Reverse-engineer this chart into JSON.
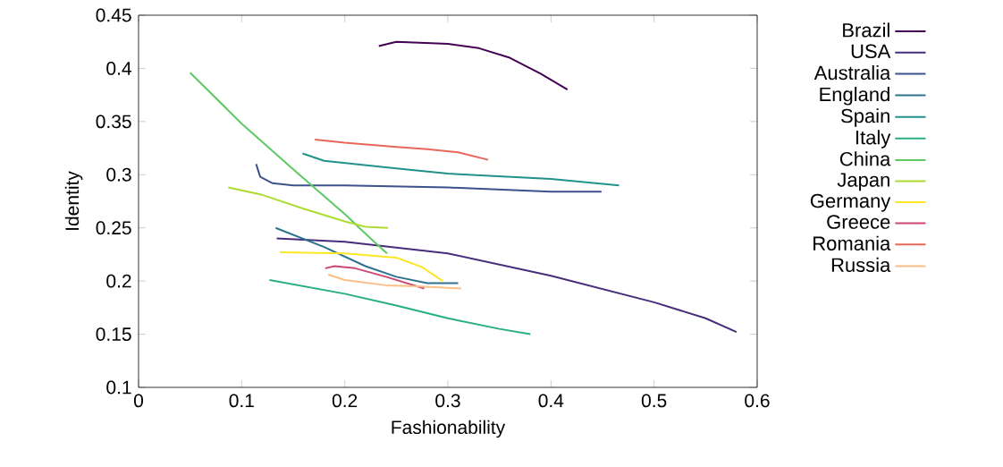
{
  "chart_data": {
    "type": "line",
    "xlabel": "Fashionability",
    "ylabel": "Identity",
    "xlim": [
      0,
      0.6
    ],
    "ylim": [
      0.1,
      0.45
    ],
    "xticks": [
      0,
      0.1,
      0.2,
      0.3,
      0.4,
      0.5,
      0.6
    ],
    "yticks": [
      0.1,
      0.15,
      0.2,
      0.25,
      0.3,
      0.35,
      0.4,
      0.45
    ],
    "legend": "right",
    "marker": "none",
    "line_style": "solid",
    "series": [
      {
        "name": "Brazil",
        "color": "#440154",
        "x": [
          0.233,
          0.25,
          0.3,
          0.33,
          0.36,
          0.39,
          0.416
        ],
        "values": [
          0.421,
          0.425,
          0.423,
          0.419,
          0.41,
          0.395,
          0.38
        ]
      },
      {
        "name": "USA",
        "color": "#472d7b",
        "x": [
          0.134,
          0.2,
          0.3,
          0.4,
          0.5,
          0.55,
          0.58
        ],
        "values": [
          0.24,
          0.237,
          0.226,
          0.205,
          0.18,
          0.165,
          0.152
        ]
      },
      {
        "name": "Australia",
        "color": "#3b528b",
        "x": [
          0.114,
          0.118,
          0.13,
          0.15,
          0.2,
          0.3,
          0.4,
          0.449
        ],
        "values": [
          0.31,
          0.298,
          0.292,
          0.29,
          0.29,
          0.288,
          0.284,
          0.284
        ]
      },
      {
        "name": "England",
        "color": "#2c728e",
        "x": [
          0.133,
          0.18,
          0.22,
          0.25,
          0.28,
          0.31
        ],
        "values": [
          0.25,
          0.232,
          0.214,
          0.204,
          0.198,
          0.198
        ]
      },
      {
        "name": "Spain",
        "color": "#21918c",
        "x": [
          0.159,
          0.18,
          0.25,
          0.3,
          0.4,
          0.466
        ],
        "values": [
          0.32,
          0.313,
          0.306,
          0.301,
          0.296,
          0.29
        ]
      },
      {
        "name": "Italy",
        "color": "#28ae80",
        "x": [
          0.127,
          0.2,
          0.25,
          0.3,
          0.35,
          0.38
        ],
        "values": [
          0.201,
          0.188,
          0.177,
          0.165,
          0.155,
          0.15
        ]
      },
      {
        "name": "China",
        "color": "#5ec962",
        "x": [
          0.05,
          0.1,
          0.15,
          0.2,
          0.225,
          0.241
        ],
        "values": [
          0.396,
          0.348,
          0.305,
          0.263,
          0.24,
          0.226
        ]
      },
      {
        "name": "Japan",
        "color": "#addc30",
        "x": [
          0.087,
          0.12,
          0.16,
          0.2,
          0.22,
          0.242
        ],
        "values": [
          0.288,
          0.281,
          0.268,
          0.256,
          0.251,
          0.25
        ]
      },
      {
        "name": "Germany",
        "color": "#fde725",
        "x": [
          0.137,
          0.2,
          0.25,
          0.275,
          0.295
        ],
        "values": [
          0.227,
          0.226,
          0.222,
          0.213,
          0.2
        ]
      },
      {
        "name": "Greece",
        "color": "#cc4778",
        "x": [
          0.181,
          0.19,
          0.21,
          0.24,
          0.277
        ],
        "values": [
          0.212,
          0.214,
          0.212,
          0.204,
          0.193
        ]
      },
      {
        "name": "Romania",
        "color": "#e8675a",
        "x": [
          0.171,
          0.2,
          0.25,
          0.28,
          0.31,
          0.339
        ],
        "values": [
          0.333,
          0.33,
          0.326,
          0.324,
          0.321,
          0.314
        ]
      },
      {
        "name": "Russia",
        "color": "#fdbf86",
        "x": [
          0.184,
          0.2,
          0.24,
          0.27,
          0.313
        ],
        "values": [
          0.206,
          0.201,
          0.196,
          0.195,
          0.193
        ]
      }
    ]
  }
}
